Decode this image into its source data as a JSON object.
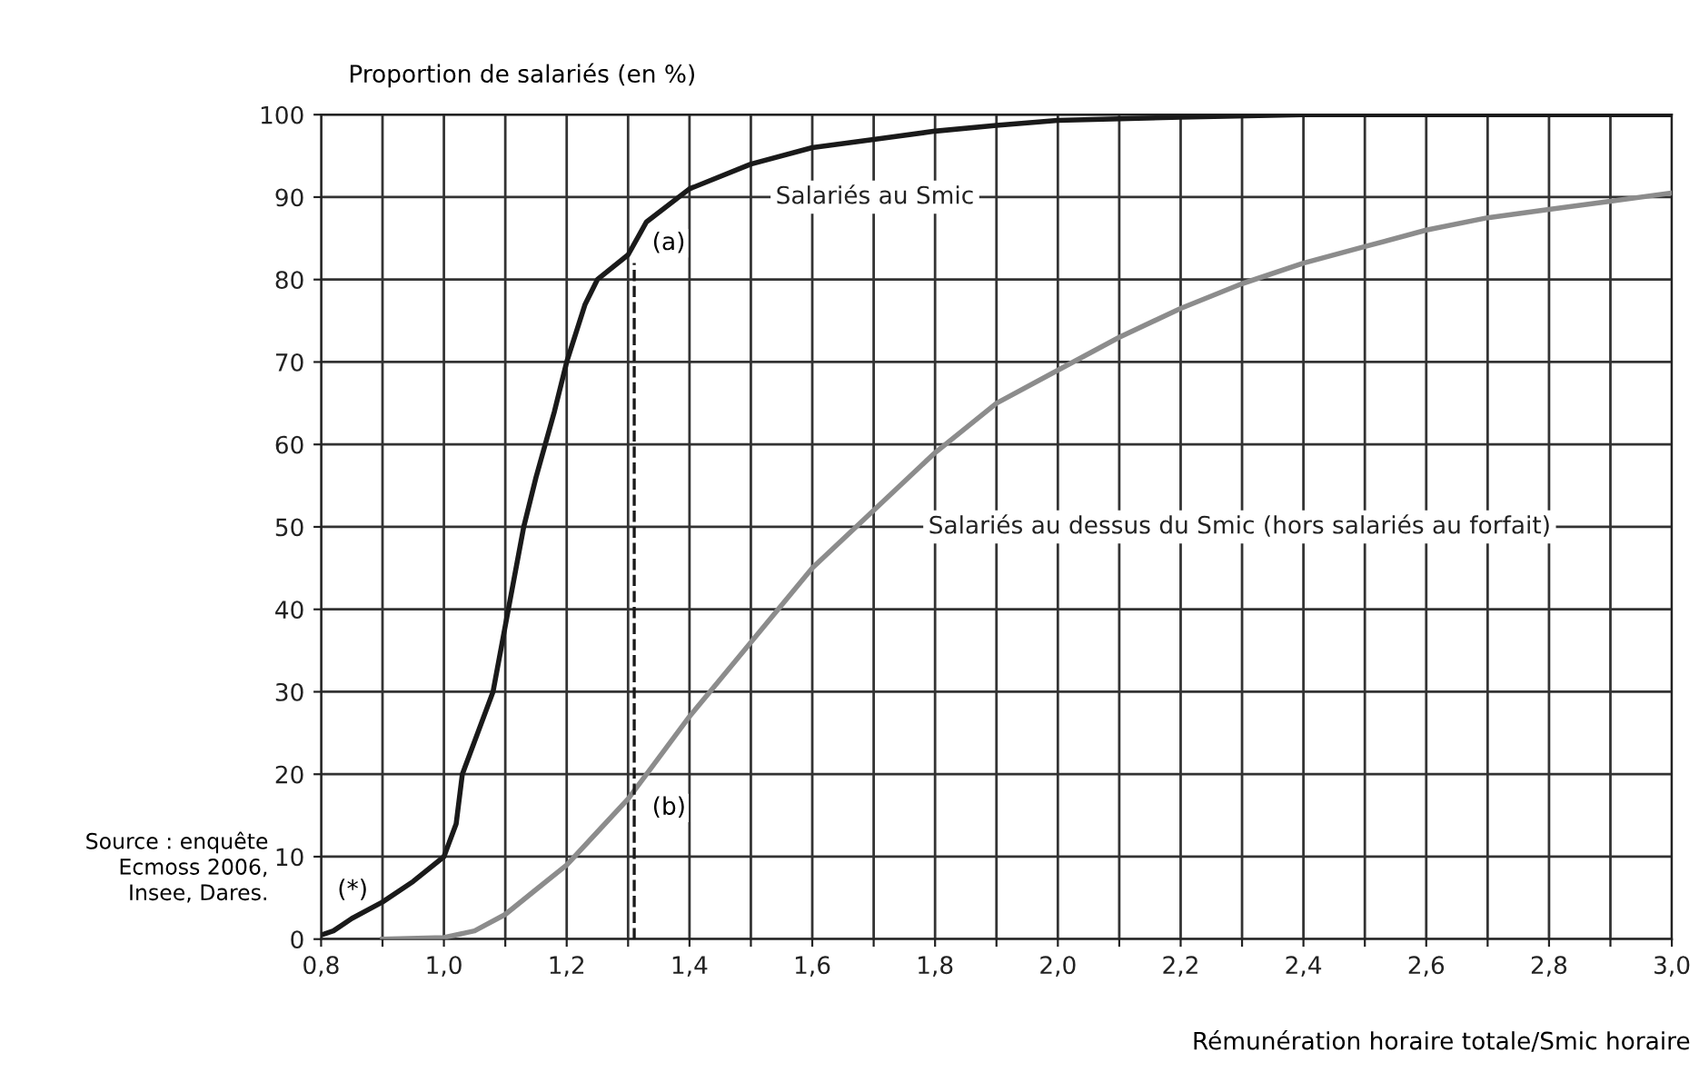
{
  "chart_data": {
    "type": "line",
    "xlabel": "Rémunération horaire totale/Smic horaire",
    "ylabel": "Proportion de salariés (en %)",
    "series": [
      {
        "name": "Salariés au Smic",
        "color": "#1a1a1a",
        "x": [
          0.8,
          0.82,
          0.85,
          0.9,
          0.95,
          1.0,
          1.02,
          1.03,
          1.05,
          1.08,
          1.1,
          1.13,
          1.15,
          1.18,
          1.2,
          1.23,
          1.25,
          1.3,
          1.33,
          1.4,
          1.5,
          1.6,
          1.7,
          1.8,
          1.9,
          2.0,
          2.2,
          2.4,
          3.0
        ],
        "values": [
          0.5,
          1,
          2.5,
          4.5,
          7,
          10,
          14,
          20,
          24,
          30,
          38,
          50,
          56,
          64,
          70,
          77,
          80,
          83,
          87,
          91,
          94,
          96,
          97,
          98,
          98.7,
          99.3,
          99.7,
          100,
          100
        ]
      },
      {
        "name": "Salariés au dessus du Smic (hors salariés au forfait)",
        "color": "#8c8c8c",
        "x": [
          0.9,
          1.0,
          1.05,
          1.1,
          1.15,
          1.2,
          1.25,
          1.3,
          1.35,
          1.4,
          1.5,
          1.6,
          1.7,
          1.8,
          1.9,
          2.0,
          2.1,
          2.2,
          2.3,
          2.4,
          2.5,
          2.6,
          2.7,
          2.8,
          2.9,
          3.0
        ],
        "values": [
          0,
          0.2,
          1,
          3,
          6,
          9,
          13,
          17,
          22,
          27,
          36,
          45,
          52,
          59,
          65,
          69,
          73,
          76.5,
          79.5,
          82,
          84,
          86,
          87.5,
          88.5,
          89.5,
          90.5
        ]
      },
      {
        "color": "#1a1a1a",
        "line_style": "dashed",
        "x": [
          1.31,
          1.31
        ],
        "values": [
          0,
          82
        ]
      }
    ],
    "xlim": [
      0.8,
      3.0
    ],
    "ylim": [
      0,
      100
    ],
    "xticks": [
      {
        "value": 0.8,
        "label": "0,8"
      },
      {
        "value": 0.9,
        "label": null
      },
      {
        "value": 1.0,
        "label": "1,0"
      },
      {
        "value": 1.1,
        "label": null
      },
      {
        "value": 1.2,
        "label": "1,2"
      },
      {
        "value": 1.3,
        "label": null
      },
      {
        "value": 1.4,
        "label": "1,4"
      },
      {
        "value": 1.5,
        "label": null
      },
      {
        "value": 1.6,
        "label": "1,6"
      },
      {
        "value": 1.7,
        "label": null
      },
      {
        "value": 1.8,
        "label": "1,8"
      },
      {
        "value": 1.9,
        "label": null
      },
      {
        "value": 2.0,
        "label": "2,0"
      },
      {
        "value": 2.1,
        "label": null
      },
      {
        "value": 2.2,
        "label": "2,2"
      },
      {
        "value": 2.3,
        "label": null
      },
      {
        "value": 2.4,
        "label": "2,4"
      },
      {
        "value": 2.5,
        "label": null
      },
      {
        "value": 2.6,
        "label": "2,6"
      },
      {
        "value": 2.7,
        "label": null
      },
      {
        "value": 2.8,
        "label": "2,8"
      },
      {
        "value": 2.9,
        "label": null
      },
      {
        "value": 3.0,
        "label": "3,0"
      }
    ],
    "yticks": [
      0,
      10,
      20,
      30,
      40,
      50,
      60,
      70,
      80,
      90,
      100
    ],
    "grid": true,
    "annotations": [
      "(a)",
      "(b)",
      "(*)",
      "Source : enquête\nEcmoss 2006,\nInsee, Dares."
    ]
  }
}
